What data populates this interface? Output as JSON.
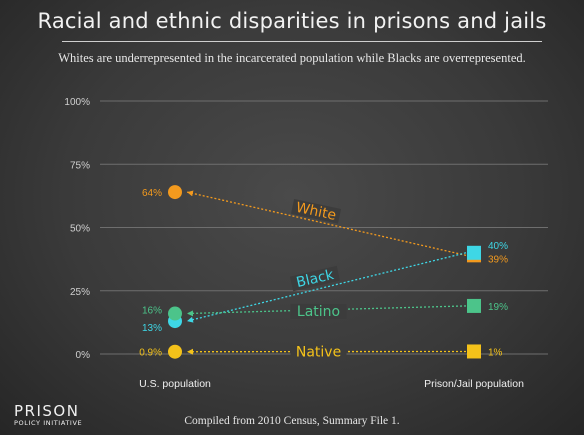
{
  "title": "Racial and ethnic disparities in prisons and jails",
  "subtitle": "Whites are underrepresented in the incarcerated population while Blacks are overrepresented.",
  "source": "Compiled from 2010 Census, Summary File 1.",
  "logo": {
    "line1": "PRISON",
    "line2": "POLICY INITIATIVE"
  },
  "chart_data": {
    "type": "line",
    "categories": [
      "U.S. population",
      "Prison/Jail population"
    ],
    "ylim": [
      0,
      100
    ],
    "yticks": [
      0,
      25,
      50,
      75,
      100
    ],
    "ytick_labels": [
      "0%",
      "25%",
      "50%",
      "75%",
      "100%"
    ],
    "grid": true,
    "series": [
      {
        "name": "White",
        "values": [
          64,
          39
        ],
        "labels": [
          "64%",
          "39%"
        ],
        "color": "#f39a1e"
      },
      {
        "name": "Black",
        "values": [
          13,
          40
        ],
        "labels": [
          "13%",
          "40%"
        ],
        "color": "#3ed7e6"
      },
      {
        "name": "Latino",
        "values": [
          16,
          19
        ],
        "labels": [
          "16%",
          "19%"
        ],
        "color": "#4cc48a"
      },
      {
        "name": "Native",
        "values": [
          0.9,
          1
        ],
        "labels": [
          "0.9%",
          "1%"
        ],
        "color": "#f4c21a"
      }
    ]
  }
}
